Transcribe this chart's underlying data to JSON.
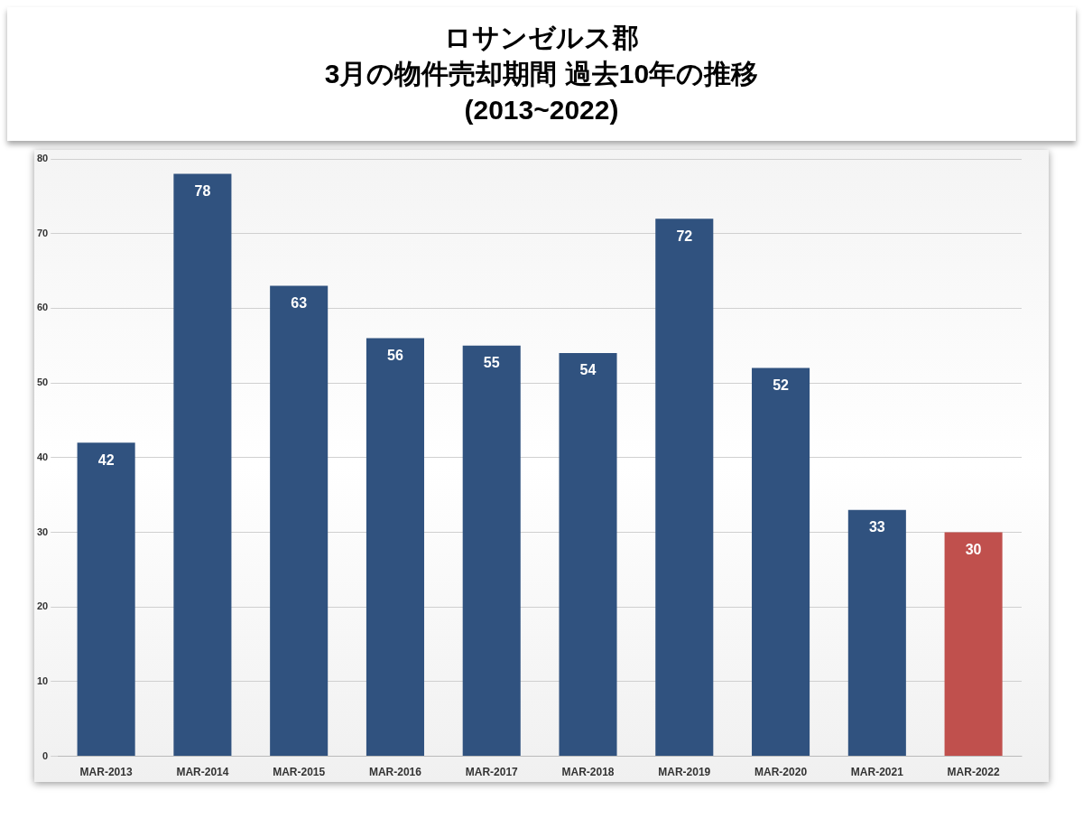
{
  "chart_data": {
    "type": "bar",
    "title": "ロサンゼルス郡\n3月の物件売却期間 過去10年の推移\n(2013~2022)",
    "categories": [
      "MAR-2013",
      "MAR-2014",
      "MAR-2015",
      "MAR-2016",
      "MAR-2017",
      "MAR-2018",
      "MAR-2019",
      "MAR-2020",
      "MAR-2021",
      "MAR-2022"
    ],
    "values": [
      42,
      78,
      63,
      56,
      55,
      54,
      72,
      52,
      33,
      30
    ],
    "colors": [
      "#30527f",
      "#30527f",
      "#30527f",
      "#30527f",
      "#30527f",
      "#30527f",
      "#30527f",
      "#30527f",
      "#30527f",
      "#c0504d"
    ],
    "ylim": [
      0,
      80
    ],
    "yticks": [
      0,
      10,
      20,
      30,
      40,
      50,
      60,
      70,
      80
    ],
    "grid": "y",
    "data_labels": true,
    "legend": false
  }
}
